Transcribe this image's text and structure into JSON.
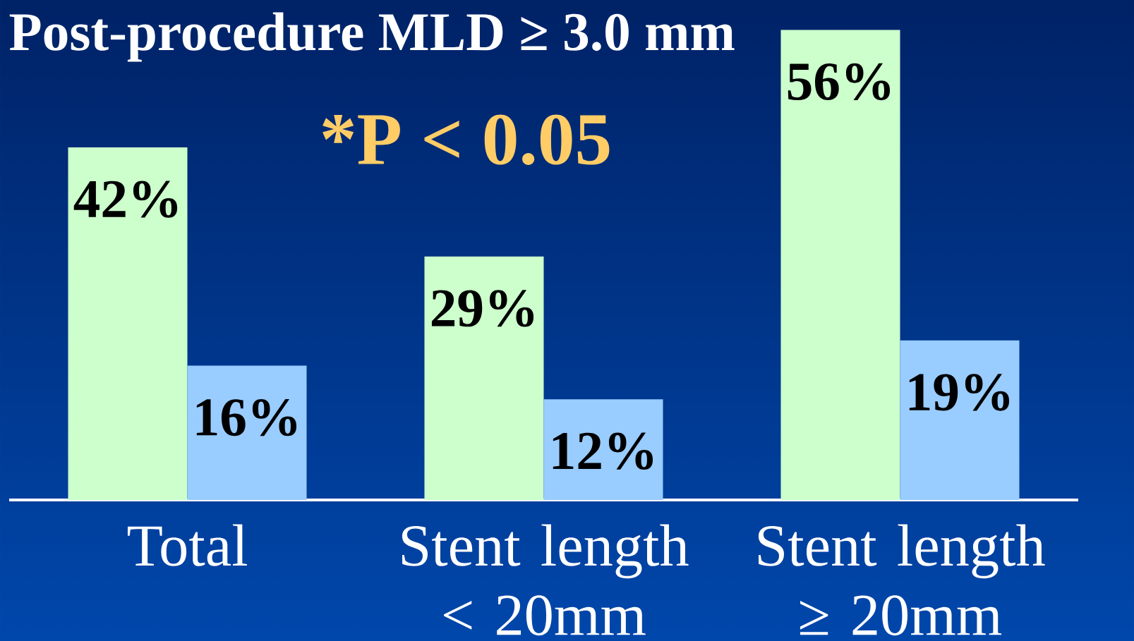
{
  "chart_data": {
    "type": "bar",
    "title": "Post-procedure MLD ≥ 3.0 mm",
    "categories": [
      "Total",
      "Stent length < 20mm",
      "Stent length ≥ 20mm"
    ],
    "series": [
      {
        "color": "#ccffcc",
        "values": [
          42,
          29,
          56
        ],
        "value_labels": [
          "42%",
          "29%",
          "56%"
        ]
      },
      {
        "color": "#99ccff",
        "values": [
          16,
          12,
          19
        ],
        "value_labels": [
          "16%",
          "12%",
          "19%"
        ]
      }
    ],
    "tick_labels": "x",
    "annotations": [
      "*P < 0.05"
    ],
    "grid": false
  }
}
